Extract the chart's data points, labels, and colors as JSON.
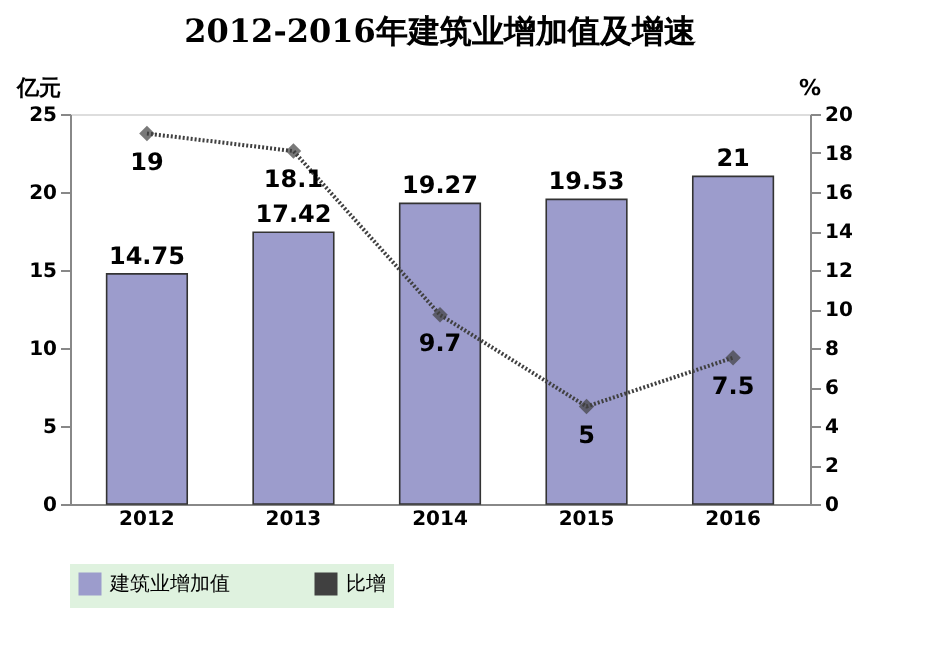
{
  "chart_data": {
    "type": "bar",
    "title": "2012-2016年建筑业增加值及增速",
    "categories": [
      "2012",
      "2013",
      "2014",
      "2015",
      "2016"
    ],
    "ylabel": "亿元",
    "y2label": "%",
    "series": [
      {
        "name": "建筑业增加值",
        "color": "#9c9ccc",
        "values": [
          14.75,
          17.42,
          19.27,
          19.53,
          21
        ]
      },
      {
        "name": "比增",
        "type": "line",
        "axis": "y2",
        "color": "#404040",
        "marker": "diamond",
        "line_style": "dotted",
        "values": [
          19,
          18.1,
          9.7,
          5,
          7.5
        ]
      }
    ],
    "ylim": [
      0,
      25
    ],
    "yticks": [
      0,
      5,
      10,
      15,
      20,
      25
    ],
    "y2lim": [
      0,
      20
    ],
    "y2ticks": [
      0,
      2,
      4,
      6,
      8,
      10,
      12,
      14,
      16,
      18,
      20
    ],
    "data_labels": true,
    "grid": false,
    "legend": "bottom"
  }
}
